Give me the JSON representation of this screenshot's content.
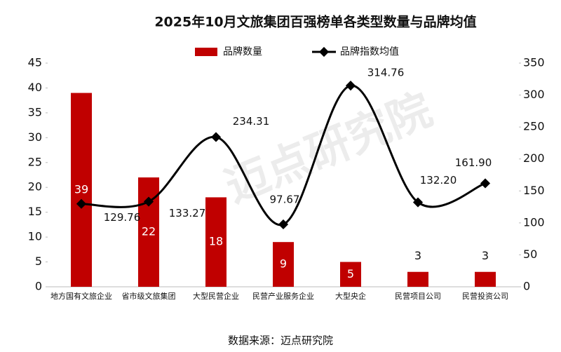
{
  "chart_data": {
    "type": "bar_line",
    "title": "2025年10月文旅集团百强榜单各类型数量与品牌均值",
    "categories": [
      "地方国有文旅企业",
      "省市级文旅集团",
      "大型民营企业",
      "民营产业服务企业",
      "大型央企",
      "民营项目公司",
      "民营投资公司"
    ],
    "series": [
      {
        "name": "品牌数量",
        "type": "bar",
        "color": "#c00000",
        "values": [
          39,
          22,
          18,
          9,
          5,
          3,
          3
        ]
      },
      {
        "name": "品牌指数均值",
        "type": "line",
        "axis": "y2",
        "color": "#000000",
        "values": [
          129.76,
          133.27,
          234.31,
          97.67,
          314.76,
          132.2,
          161.9
        ],
        "value_labels": [
          "129.76",
          "133.27",
          "234.31",
          "97.67",
          "314.76",
          "132.20",
          "161.90"
        ]
      }
    ],
    "ylim": [
      0,
      45
    ],
    "yticks": [
      0,
      5,
      10,
      15,
      20,
      25,
      30,
      35,
      40,
      45
    ],
    "y2lim": [
      0,
      350
    ],
    "y2ticks": [
      0,
      50,
      100,
      150,
      200,
      250,
      300,
      350
    ],
    "legend": "top",
    "watermark": "迈点研究院",
    "source": "数据来源：迈点研究院"
  }
}
